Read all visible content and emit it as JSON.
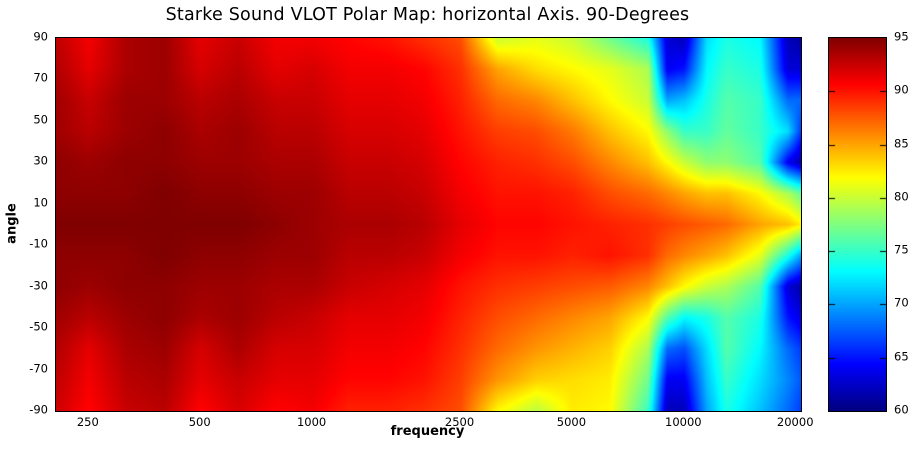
{
  "chart_data": {
    "type": "heatmap",
    "title": "Starke Sound VLOT Polar Map: horizontal Axis. 90-Degrees",
    "xlabel": "frequency",
    "ylabel": "angle",
    "x_scale": "log",
    "grid": false,
    "freq_range": [
      204,
      20600
    ],
    "angle_range": [
      -90,
      90
    ],
    "x_ticks": [
      250,
      500,
      1000,
      2500,
      5000,
      10000,
      20000
    ],
    "y_ticks": [
      90,
      70,
      50,
      30,
      10,
      -10,
      -30,
      -50,
      -70,
      -90
    ],
    "colorbar": {
      "min": 60,
      "max": 95,
      "ticks": [
        95,
        90,
        85,
        80,
        75,
        70,
        65,
        60
      ],
      "colormap": "jet",
      "position": "right"
    },
    "frequencies": [
      200,
      250,
      315,
      400,
      500,
      630,
      800,
      1000,
      1250,
      1600,
      2000,
      2500,
      3150,
      4000,
      5000,
      6300,
      8000,
      9000,
      10000,
      11500,
      13000,
      16000,
      19000,
      21000
    ],
    "angles": [
      90,
      75,
      60,
      45,
      30,
      15,
      0,
      -15,
      -30,
      -45,
      -60,
      -75,
      -90
    ],
    "values": [
      [
        93,
        91,
        93.5,
        94,
        91.5,
        92.5,
        91,
        91,
        90.5,
        90,
        89,
        88,
        80,
        81,
        80,
        77,
        74,
        63,
        62,
        72,
        74,
        73,
        62,
        61
      ],
      [
        93.5,
        91.5,
        93.5,
        94,
        92,
        93,
        91.5,
        92,
        91,
        91,
        90.5,
        89,
        85,
        83,
        82,
        81,
        79,
        64,
        65,
        73,
        75,
        74,
        63,
        63
      ],
      [
        94,
        92.5,
        94,
        94,
        93,
        93.5,
        92.5,
        92.5,
        91.5,
        91.5,
        91,
        89.5,
        87,
        86,
        84,
        82,
        80,
        70,
        71,
        74,
        76,
        75,
        68,
        68
      ],
      [
        94,
        93,
        94,
        94.5,
        93.5,
        94,
        93,
        93,
        92,
        92,
        91.5,
        90,
        88.5,
        88,
        86.5,
        84,
        82,
        78,
        75,
        75,
        76.5,
        75,
        72,
        65
      ],
      [
        94.5,
        94,
        94.5,
        94.5,
        94,
        94,
        93.5,
        93.5,
        92.5,
        92.5,
        92,
        90.5,
        89.5,
        89,
        88,
        86,
        84,
        82,
        80,
        78,
        78,
        76,
        64,
        61
      ],
      [
        94.5,
        94.5,
        94.5,
        95,
        94.5,
        94.5,
        94,
        94,
        93,
        93,
        92.5,
        91,
        90,
        90,
        89.5,
        88,
        87,
        86,
        85,
        84,
        84,
        82,
        79,
        76
      ],
      [
        95,
        95,
        95,
        95,
        95,
        95,
        94.5,
        94,
        93.5,
        93.5,
        93,
        91.5,
        90.5,
        90.5,
        90,
        89.5,
        89,
        88.5,
        88,
        87.5,
        87,
        85,
        84,
        82
      ],
      [
        94.5,
        94.5,
        94.5,
        95,
        94.5,
        94.5,
        94,
        94,
        93,
        93,
        92.5,
        91,
        90,
        90,
        89.5,
        90,
        89,
        87,
        86,
        85,
        84,
        81,
        74,
        69
      ],
      [
        94.5,
        94,
        94.5,
        94.5,
        94,
        94,
        93.5,
        93.5,
        92.5,
        92,
        91.5,
        90,
        89,
        88.5,
        88,
        87.5,
        86,
        84,
        82,
        80,
        79,
        76,
        63,
        61
      ],
      [
        94,
        93,
        94,
        94.5,
        93.5,
        94,
        93,
        92.5,
        91.5,
        91.5,
        91,
        89.5,
        88,
        87,
        86,
        85,
        82,
        76,
        73,
        74,
        76,
        74,
        65,
        63
      ],
      [
        93.5,
        91.5,
        93.5,
        94,
        92,
        93.5,
        92,
        92,
        91,
        91,
        90.5,
        89,
        87,
        85.5,
        84.5,
        83.5,
        79,
        68,
        67,
        72,
        76,
        73,
        68,
        66
      ],
      [
        93,
        91,
        93,
        93.5,
        91.5,
        92.5,
        91.5,
        91.5,
        90.5,
        90.5,
        90,
        88.5,
        85.5,
        83.5,
        83,
        82.5,
        77,
        64,
        64,
        71,
        75,
        72,
        69,
        67
      ],
      [
        92.5,
        90.5,
        92.5,
        93,
        90.5,
        92,
        90.5,
        91,
        89.5,
        89.5,
        89,
        88,
        82,
        79.5,
        82.5,
        82,
        75,
        62,
        62,
        70,
        74,
        71,
        68,
        66
      ]
    ]
  }
}
